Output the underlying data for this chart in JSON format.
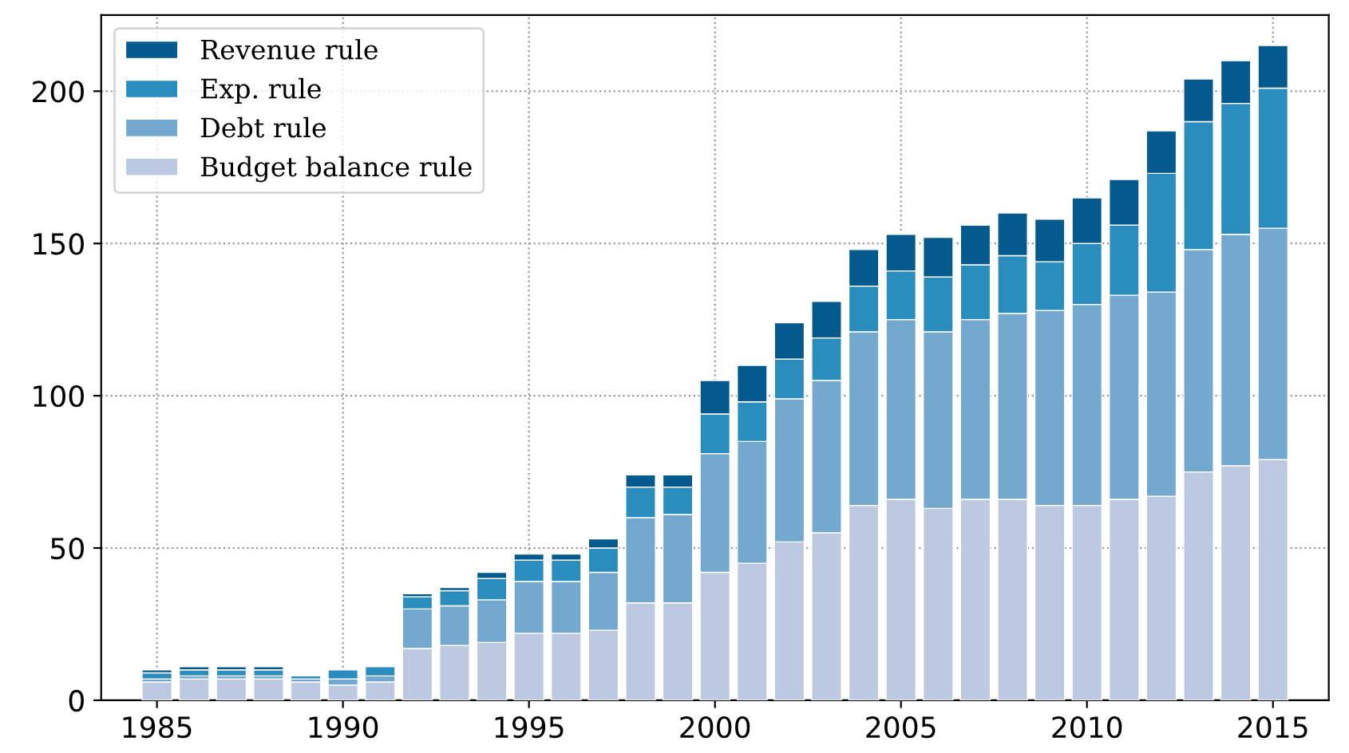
{
  "chart_data": {
    "type": "bar",
    "stacked": true,
    "x": [
      1985,
      1986,
      1987,
      1988,
      1989,
      1990,
      1991,
      1992,
      1993,
      1994,
      1995,
      1996,
      1997,
      1998,
      1999,
      2000,
      2001,
      2002,
      2003,
      2004,
      2005,
      2006,
      2007,
      2008,
      2009,
      2010,
      2011,
      2012,
      2013,
      2014,
      2015
    ],
    "series": [
      {
        "name": "Budget balance rule",
        "color": "#bdc9e1",
        "values": [
          6,
          7,
          7,
          7,
          6,
          5,
          6,
          17,
          18,
          19,
          22,
          22,
          23,
          32,
          32,
          42,
          45,
          52,
          55,
          64,
          66,
          63,
          66,
          66,
          64,
          64,
          66,
          67,
          75,
          77,
          79
        ]
      },
      {
        "name": "Debt rule",
        "color": "#74a9cf",
        "values": [
          1,
          1,
          1,
          1,
          1,
          2,
          2,
          13,
          13,
          14,
          17,
          17,
          19,
          28,
          29,
          39,
          40,
          47,
          50,
          57,
          59,
          58,
          59,
          61,
          64,
          66,
          67,
          67,
          73,
          76,
          76
        ]
      },
      {
        "name": "Exp. rule",
        "color": "#2b8cbe",
        "values": [
          2,
          2,
          2,
          2,
          1,
          3,
          3,
          4,
          5,
          7,
          7,
          7,
          8,
          10,
          9,
          13,
          13,
          13,
          14,
          15,
          16,
          18,
          18,
          19,
          16,
          20,
          23,
          39,
          42,
          43,
          46
        ]
      },
      {
        "name": "Revenue rule",
        "color": "#045a8d",
        "values": [
          1,
          1,
          1,
          1,
          null,
          null,
          null,
          1,
          1,
          2,
          2,
          2,
          3,
          4,
          4,
          11,
          12,
          12,
          12,
          12,
          12,
          13,
          13,
          14,
          14,
          15,
          15,
          14,
          14,
          14,
          14
        ]
      }
    ],
    "xlim": [
      1983.5,
      2016.5
    ],
    "xticks": [
      1985,
      1990,
      1995,
      2000,
      2005,
      2010,
      2015
    ],
    "ylim": [
      0,
      225
    ],
    "yticks": [
      0,
      50,
      100,
      150,
      200
    ],
    "grid": true,
    "legend": "top left"
  }
}
